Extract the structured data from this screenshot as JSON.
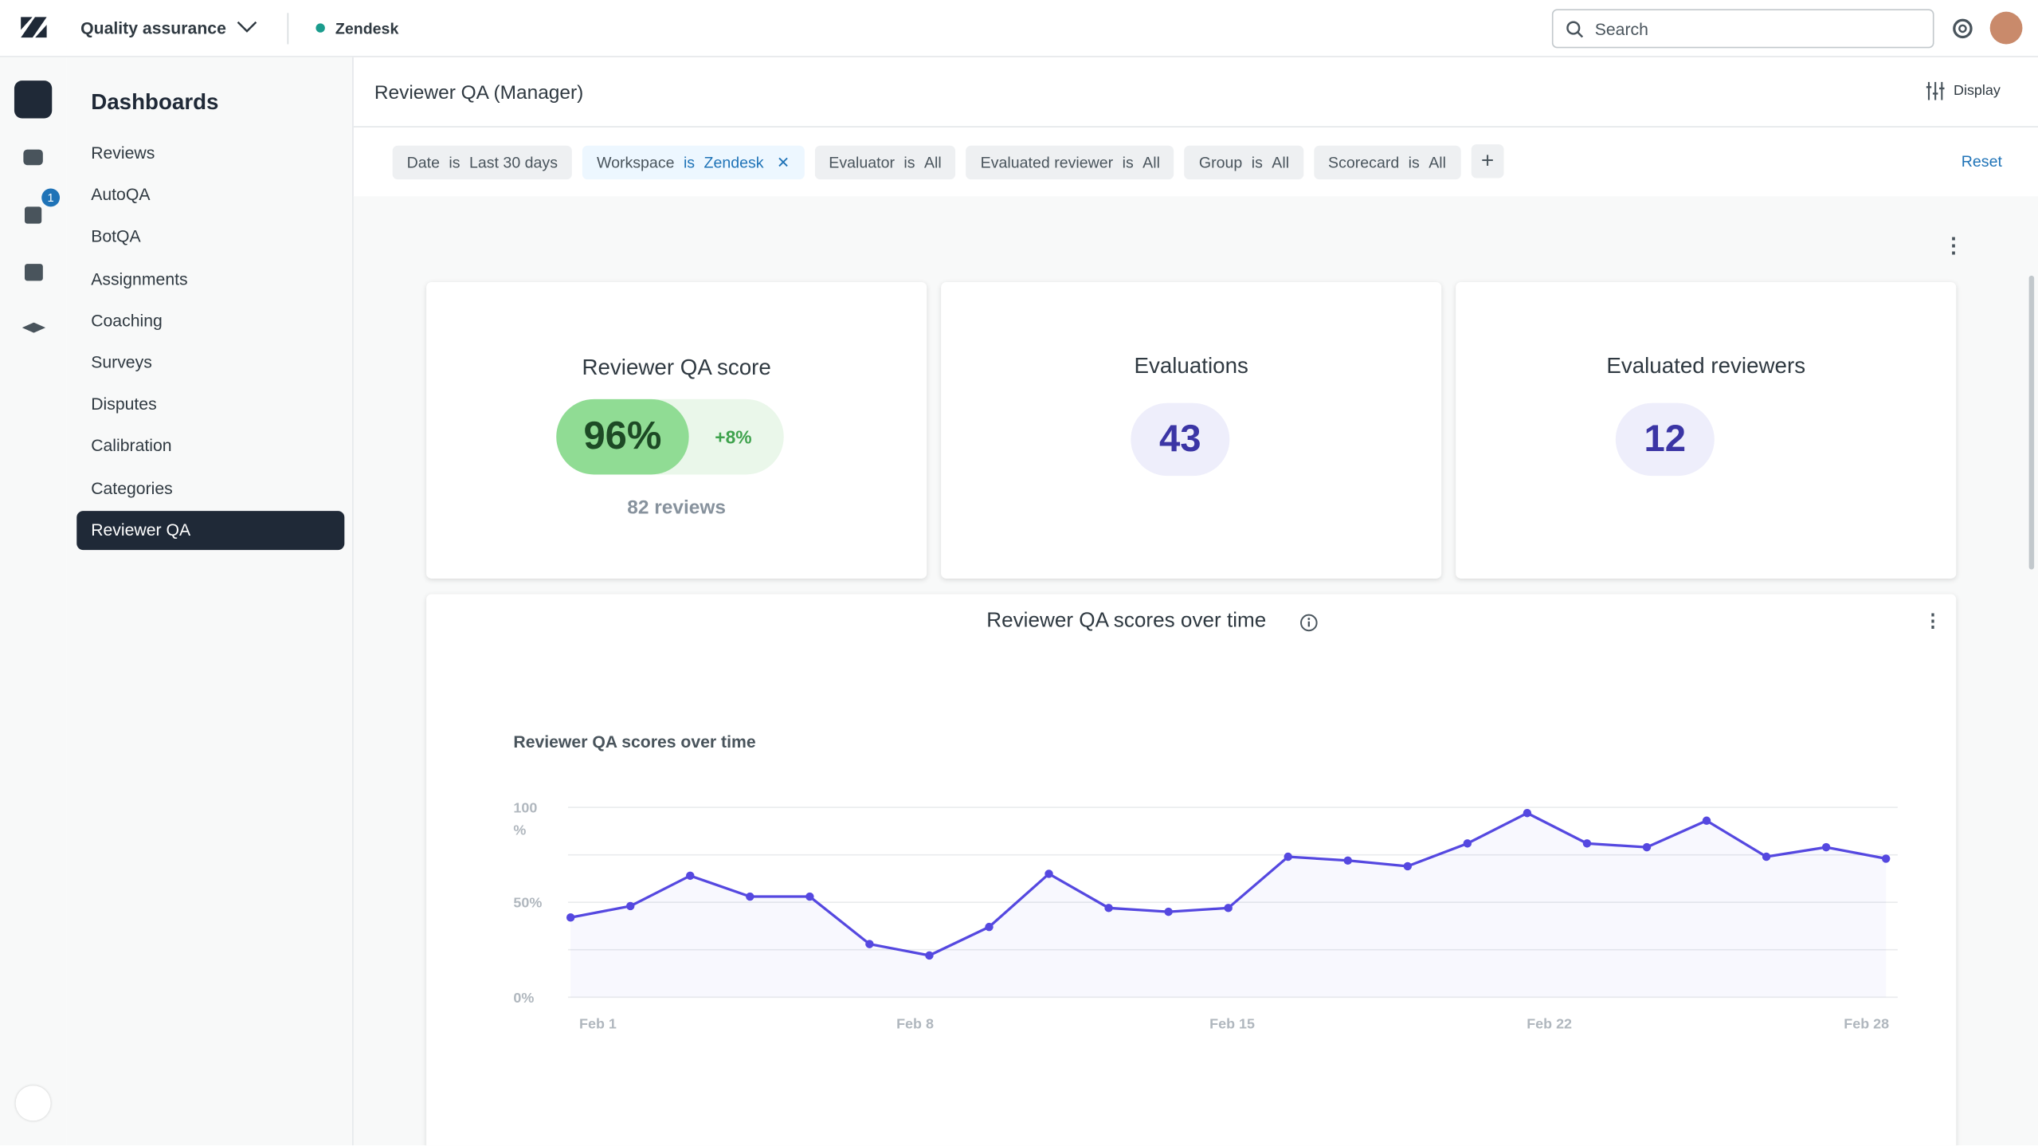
{
  "header": {
    "product": "Quality assurance",
    "workspace": "Zendesk",
    "search": "Search"
  },
  "sidebar": {
    "title": "Dashboards",
    "badge": "1",
    "items": [
      "Reviews",
      "AutoQA",
      "BotQA",
      "Assignments",
      "Coaching",
      "Surveys",
      "Disputes",
      "Calibration",
      "Categories",
      "Reviewer QA"
    ],
    "active": 9
  },
  "page": {
    "title": "Reviewer QA (Manager)",
    "display": "Display",
    "reset": "Reset"
  },
  "filters": [
    {
      "key": "Date",
      "op": "is",
      "value": "Last 30 days"
    },
    {
      "key": "Workspace",
      "op": "is",
      "value": "Zendesk"
    },
    {
      "key": "Evaluator",
      "op": "is",
      "value": "All"
    },
    {
      "key": "Evaluated reviewer",
      "op": "is",
      "value": "All"
    },
    {
      "key": "Group",
      "op": "is",
      "value": "All"
    },
    {
      "key": "Scorecard",
      "op": "is",
      "value": "All"
    }
  ],
  "cards": [
    {
      "title": "Reviewer QA score",
      "value": "96%",
      "delta": "+8%",
      "note": "82 reviews"
    },
    {
      "title": "Evaluations",
      "value": "43"
    },
    {
      "title": "Evaluated reviewers",
      "value": "12"
    }
  ],
  "panel": {
    "title": "Reviewer QA scores over time"
  },
  "chart_data": {
    "type": "line",
    "title": "Reviewer QA scores over time",
    "x_labels": [
      "Feb 1",
      "Feb 8",
      "Feb 15",
      "Feb 22",
      "Feb 28"
    ],
    "series": [
      {
        "name": "Reviewer QA score",
        "color": "#5548e0",
        "values": [
          42,
          48,
          64,
          53,
          53,
          28,
          22,
          37,
          65,
          47,
          45,
          47,
          74,
          72,
          69,
          81,
          97,
          81,
          79,
          93,
          74,
          79,
          73
        ]
      }
    ],
    "ylim": [
      0,
      100
    ],
    "yticks": [
      {
        "value": 0,
        "label": "0%"
      },
      {
        "value": 50,
        "label": "50%"
      },
      {
        "value": 100,
        "label": "100 %"
      }
    ],
    "gridlines": [
      0,
      25,
      50,
      75,
      100
    ]
  }
}
